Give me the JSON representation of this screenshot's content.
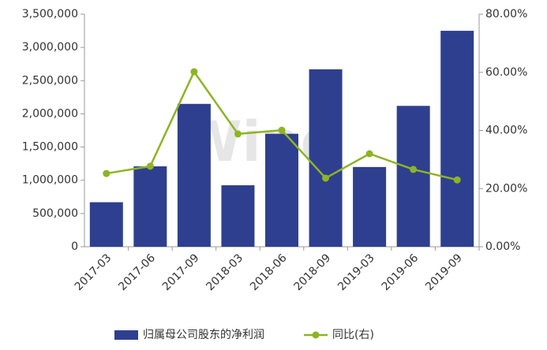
{
  "chart_data": {
    "type": "bar",
    "watermark": "Wind",
    "categories": [
      "2017-03",
      "2017-06",
      "2017-09",
      "2018-03",
      "2018-06",
      "2018-09",
      "2019-03",
      "2019-06",
      "2019-09"
    ],
    "series": [
      {
        "name": "归属母公司股东的净利润",
        "type": "bar",
        "color": "#2e3f8f",
        "values": [
          670000,
          1210000,
          2150000,
          925000,
          1700000,
          2670000,
          1200000,
          2120000,
          3250000
        ]
      },
      {
        "name": "同比(右)",
        "type": "line",
        "axis": "y2",
        "color": "#8db424",
        "values": [
          25.2,
          27.7,
          60.2,
          38.8,
          40.1,
          23.6,
          32.0,
          26.6,
          23.0
        ]
      }
    ],
    "ylim": [
      0,
      3500000
    ],
    "yticks": [
      0,
      {
        "value": 500000,
        "label": "500,000"
      },
      {
        "value": 1000000,
        "label": "1,000,000"
      },
      {
        "value": 1500000,
        "label": "1,500,000"
      },
      {
        "value": 2000000,
        "label": "2,000,000"
      },
      {
        "value": 2500000,
        "label": "2,500,000"
      },
      {
        "value": 3000000,
        "label": "3,000,000"
      },
      {
        "value": 3500000,
        "label": "3,500,000"
      }
    ],
    "y2lim": [
      0,
      80
    ],
    "y2ticks": [
      {
        "value": 0,
        "label": "0.00%"
      },
      {
        "value": 20,
        "label": "20.00%"
      },
      {
        "value": 40,
        "label": "40.00%"
      },
      {
        "value": 60,
        "label": "60.00%"
      },
      {
        "value": 80,
        "label": "80.00%"
      }
    ],
    "grid": false,
    "legend": "bottom"
  }
}
